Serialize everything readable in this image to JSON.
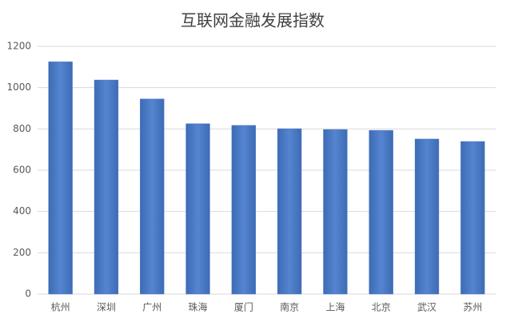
{
  "chart_data": {
    "type": "bar",
    "title": "互联网金融发展指数",
    "categories": [
      "杭州",
      "深圳",
      "广州",
      "珠海",
      "厦门",
      "南京",
      "上海",
      "北京",
      "武汉",
      "苏州"
    ],
    "values": [
      1125,
      1037,
      945,
      825,
      817,
      801,
      797,
      793,
      751,
      739
    ],
    "color": "#4a78c2",
    "ylim": [
      0,
      1200
    ],
    "yticks": [
      0,
      200,
      400,
      600,
      800,
      1000,
      1200
    ],
    "grid": true
  }
}
